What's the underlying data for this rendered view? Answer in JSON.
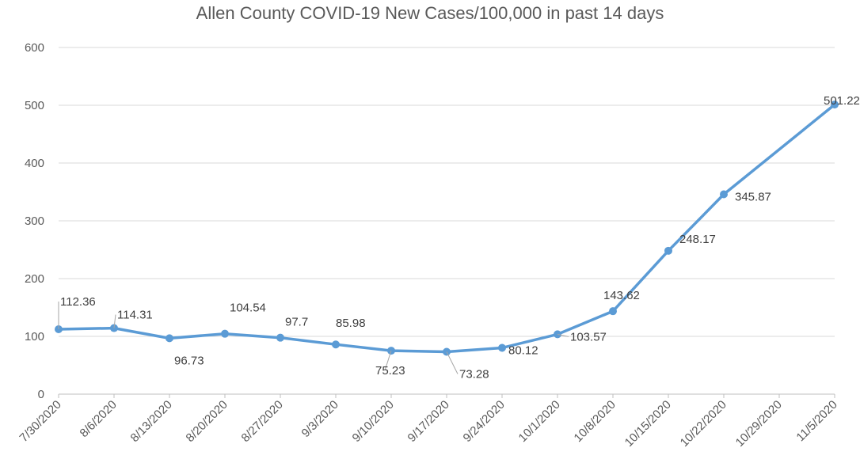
{
  "chart_data": {
    "type": "line",
    "title": "Allen County COVID-19 New Cases/100,000 in past 14 days",
    "xlabel": "",
    "ylabel": "",
    "categories": [
      "7/30/2020",
      "8/6/2020",
      "8/13/2020",
      "8/20/2020",
      "8/27/2020",
      "9/3/2020",
      "9/10/2020",
      "9/17/2020",
      "9/24/2020",
      "10/1/2020",
      "10/8/2020",
      "10/15/2020",
      "10/22/2020",
      "10/29/2020",
      "11/5/2020"
    ],
    "series": [
      {
        "name": "",
        "values": [
          112.36,
          114.31,
          96.73,
          104.54,
          97.7,
          85.98,
          75.23,
          73.28,
          80.12,
          103.57,
          143.62,
          248.17,
          345.87,
          null,
          501.22
        ],
        "labels": [
          "112.36",
          "114.31",
          "96.73",
          "104.54",
          "97.7",
          "85.98",
          "75.23",
          "73.28",
          "80.12",
          "103.57",
          "143.62",
          "248.17",
          "345.87",
          "",
          "501.22"
        ],
        "color": "#5B9BD5"
      }
    ],
    "ylim": [
      0,
      600
    ],
    "yticks": [
      "0",
      "100",
      "200",
      "300",
      "400",
      "500",
      "600"
    ],
    "grid": true,
    "legend": "none",
    "colors": {
      "line": "#5B9BD5",
      "grid": "#D9D9D9",
      "axis": "#BFBFBF",
      "text": "#595959"
    }
  }
}
